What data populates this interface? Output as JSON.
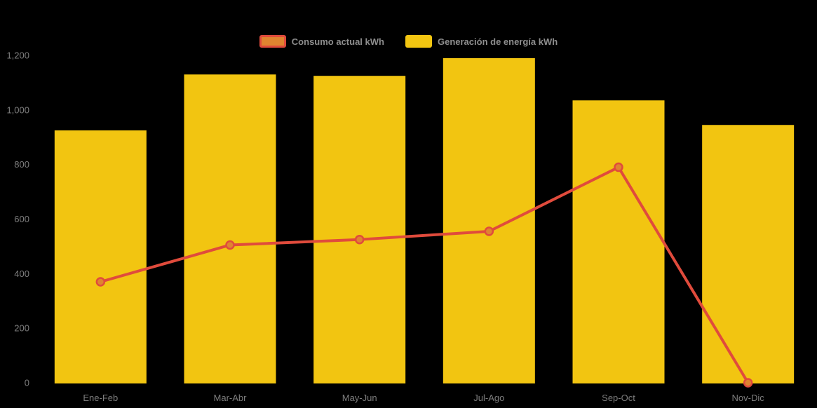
{
  "chart_data": {
    "type": "bar",
    "subtype": "combo-bar-line",
    "title": "",
    "xlabel": "",
    "ylabel": "",
    "categories": [
      "Ene-Feb",
      "Mar-Abr",
      "May-Jun",
      "Jul-Ago",
      "Sep-Oct",
      "Nov-Dic"
    ],
    "series": [
      {
        "name": "Consumo actual kWh",
        "type": "line",
        "values": [
          370,
          505,
          525,
          555,
          790,
          0
        ],
        "line_color": "#e04b3c",
        "marker_fill": "#e08430"
      },
      {
        "name": "Generación de energía kWh",
        "type": "bar",
        "values": [
          925,
          1130,
          1125,
          1190,
          1035,
          945
        ],
        "color": "#f2c511"
      }
    ],
    "ylim": [
      0,
      1200
    ],
    "y_tick_labels": [
      "0",
      "200",
      "400",
      "600",
      "800",
      "1,000",
      "1,200"
    ],
    "y_tick_values": [
      0,
      200,
      400,
      600,
      800,
      1000,
      1200
    ],
    "legend_position": "top-center",
    "grid": false,
    "background_color": "#000000",
    "axis_label_color": "#7d7d7d",
    "legend_text_color": "#8e8e8e"
  }
}
